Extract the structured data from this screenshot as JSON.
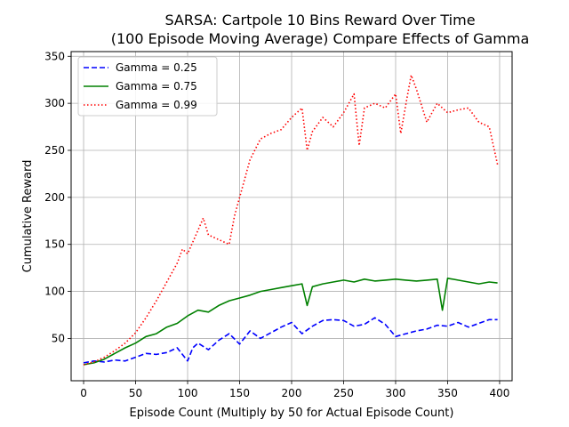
{
  "chart_data": {
    "type": "line",
    "title_line1": "SARSA: Cartpole 10 Bins Reward Over Time",
    "title_line2": "(100 Episode Moving Average) Compare Effects of Gamma",
    "xlabel": "Episode Count (Multiply by 50 for Actual Episode Count)",
    "ylabel": "Cumulative Reward",
    "xlim": [
      -12,
      412
    ],
    "ylim": [
      5,
      355
    ],
    "xticks": [
      0,
      50,
      100,
      150,
      200,
      250,
      300,
      350,
      400
    ],
    "yticks": [
      50,
      100,
      150,
      200,
      250,
      300,
      350
    ],
    "grid": true,
    "legend_position": "upper-left",
    "series": [
      {
        "name": "Gamma = 0.25",
        "color": "#0000ff",
        "style": "dashed",
        "points": [
          [
            0,
            24
          ],
          [
            10,
            26
          ],
          [
            20,
            25
          ],
          [
            30,
            27
          ],
          [
            40,
            26
          ],
          [
            50,
            30
          ],
          [
            60,
            34
          ],
          [
            70,
            33
          ],
          [
            80,
            35
          ],
          [
            90,
            40
          ],
          [
            100,
            26
          ],
          [
            105,
            40
          ],
          [
            110,
            45
          ],
          [
            120,
            38
          ],
          [
            130,
            48
          ],
          [
            140,
            55
          ],
          [
            150,
            44
          ],
          [
            160,
            58
          ],
          [
            170,
            50
          ],
          [
            180,
            56
          ],
          [
            190,
            62
          ],
          [
            200,
            67
          ],
          [
            210,
            55
          ],
          [
            220,
            63
          ],
          [
            230,
            69
          ],
          [
            240,
            70
          ],
          [
            250,
            69
          ],
          [
            260,
            63
          ],
          [
            270,
            65
          ],
          [
            280,
            72
          ],
          [
            290,
            65
          ],
          [
            300,
            52
          ],
          [
            310,
            55
          ],
          [
            320,
            58
          ],
          [
            330,
            60
          ],
          [
            340,
            64
          ],
          [
            350,
            63
          ],
          [
            360,
            67
          ],
          [
            370,
            62
          ],
          [
            380,
            66
          ],
          [
            390,
            70
          ],
          [
            398,
            70
          ]
        ]
      },
      {
        "name": "Gamma = 0.75",
        "color": "#008000",
        "style": "solid",
        "points": [
          [
            0,
            22
          ],
          [
            10,
            24
          ],
          [
            20,
            28
          ],
          [
            30,
            34
          ],
          [
            40,
            40
          ],
          [
            50,
            45
          ],
          [
            60,
            52
          ],
          [
            70,
            55
          ],
          [
            80,
            62
          ],
          [
            90,
            66
          ],
          [
            100,
            74
          ],
          [
            110,
            80
          ],
          [
            120,
            78
          ],
          [
            130,
            85
          ],
          [
            140,
            90
          ],
          [
            150,
            93
          ],
          [
            160,
            96
          ],
          [
            170,
            100
          ],
          [
            180,
            102
          ],
          [
            190,
            104
          ],
          [
            200,
            106
          ],
          [
            210,
            108
          ],
          [
            215,
            85
          ],
          [
            220,
            105
          ],
          [
            230,
            108
          ],
          [
            240,
            110
          ],
          [
            250,
            112
          ],
          [
            260,
            110
          ],
          [
            270,
            113
          ],
          [
            280,
            111
          ],
          [
            290,
            112
          ],
          [
            300,
            113
          ],
          [
            310,
            112
          ],
          [
            320,
            111
          ],
          [
            330,
            112
          ],
          [
            340,
            113
          ],
          [
            345,
            80
          ],
          [
            350,
            114
          ],
          [
            360,
            112
          ],
          [
            370,
            110
          ],
          [
            380,
            108
          ],
          [
            390,
            110
          ],
          [
            398,
            109
          ]
        ]
      },
      {
        "name": "Gamma = 0.99",
        "color": "#ff0000",
        "style": "dotted",
        "points": [
          [
            0,
            22
          ],
          [
            10,
            25
          ],
          [
            20,
            30
          ],
          [
            30,
            37
          ],
          [
            40,
            45
          ],
          [
            50,
            56
          ],
          [
            60,
            72
          ],
          [
            70,
            90
          ],
          [
            80,
            110
          ],
          [
            90,
            130
          ],
          [
            95,
            145
          ],
          [
            100,
            140
          ],
          [
            110,
            165
          ],
          [
            115,
            178
          ],
          [
            120,
            160
          ],
          [
            130,
            155
          ],
          [
            140,
            150
          ],
          [
            145,
            180
          ],
          [
            150,
            200
          ],
          [
            160,
            240
          ],
          [
            170,
            262
          ],
          [
            180,
            268
          ],
          [
            190,
            272
          ],
          [
            200,
            285
          ],
          [
            210,
            295
          ],
          [
            215,
            250
          ],
          [
            220,
            270
          ],
          [
            230,
            285
          ],
          [
            240,
            275
          ],
          [
            250,
            290
          ],
          [
            260,
            310
          ],
          [
            265,
            255
          ],
          [
            270,
            295
          ],
          [
            280,
            300
          ],
          [
            290,
            295
          ],
          [
            300,
            310
          ],
          [
            305,
            268
          ],
          [
            310,
            300
          ],
          [
            315,
            330
          ],
          [
            320,
            315
          ],
          [
            330,
            280
          ],
          [
            340,
            300
          ],
          [
            350,
            290
          ],
          [
            360,
            293
          ],
          [
            370,
            295
          ],
          [
            380,
            280
          ],
          [
            390,
            275
          ],
          [
            398,
            235
          ]
        ]
      }
    ]
  }
}
